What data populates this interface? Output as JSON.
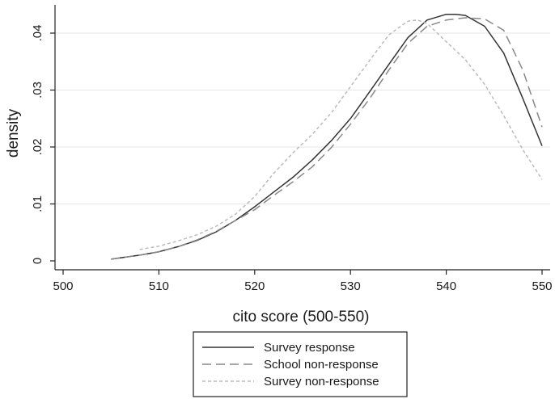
{
  "chart_data": {
    "type": "line",
    "xlabel": "cito score (500-550)",
    "ylabel": "density",
    "xlim": [
      500,
      550
    ],
    "ylim": [
      0,
      0.045
    ],
    "xticks": [
      500,
      510,
      520,
      530,
      540,
      550
    ],
    "xtick_labels": [
      "500",
      "510",
      "520",
      "530",
      "540",
      "550"
    ],
    "yticks": [
      0,
      0.01,
      0.02,
      0.03,
      0.04
    ],
    "ytick_labels": [
      "0",
      ".01",
      ".02",
      ".03",
      ".04"
    ],
    "grid": "horizontal",
    "legend_position": "bottom",
    "series": [
      {
        "name": "Survey response",
        "style": "solid",
        "color": "#333333",
        "x": [
          505,
          508,
          510,
          512,
          514,
          516,
          518,
          520,
          522,
          524,
          526,
          528,
          530,
          532,
          534,
          536,
          538,
          540,
          541,
          542,
          544,
          546,
          548,
          550
        ],
        "y": [
          0.0003,
          0.001,
          0.0016,
          0.0025,
          0.0036,
          0.0051,
          0.0071,
          0.0095,
          0.0121,
          0.0147,
          0.0177,
          0.0211,
          0.025,
          0.0297,
          0.0345,
          0.0392,
          0.0423,
          0.0433,
          0.0433,
          0.0431,
          0.0412,
          0.0365,
          0.0285,
          0.0202
        ]
      },
      {
        "name": "School non-response",
        "style": "long-dash",
        "color": "#888888",
        "x": [
          505,
          508,
          510,
          512,
          514,
          516,
          518,
          520,
          522,
          524,
          526,
          528,
          530,
          532,
          534,
          536,
          538,
          540,
          542,
          544,
          546,
          548,
          550
        ],
        "y": [
          0.0003,
          0.001,
          0.0016,
          0.0025,
          0.0037,
          0.0052,
          0.0071,
          0.009,
          0.0115,
          0.0139,
          0.0165,
          0.0199,
          0.024,
          0.0285,
          0.0335,
          0.0382,
          0.0412,
          0.0423,
          0.0427,
          0.0425,
          0.0405,
          0.0335,
          0.0235
        ]
      },
      {
        "name": "Survey non-response",
        "style": "short-dash",
        "color": "#bbbbbb",
        "x": [
          508,
          510,
          512,
          514,
          516,
          518,
          520,
          522,
          524,
          526,
          528,
          530,
          532,
          534,
          536,
          537,
          538,
          540,
          542,
          544,
          546,
          548,
          550
        ],
        "y": [
          0.002,
          0.0026,
          0.0035,
          0.0046,
          0.0061,
          0.0082,
          0.0113,
          0.0154,
          0.019,
          0.0222,
          0.026,
          0.0306,
          0.0352,
          0.0397,
          0.0421,
          0.0423,
          0.0417,
          0.0385,
          0.0353,
          0.031,
          0.0255,
          0.0195,
          0.0143
        ]
      }
    ]
  }
}
